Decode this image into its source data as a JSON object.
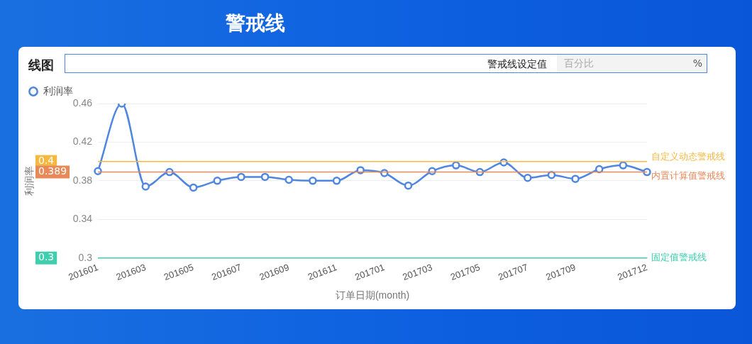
{
  "chart_data": {
    "type": "line",
    "title": "警戒线",
    "subtitle": "线图",
    "xlabel": "订单日期(month)",
    "ylabel": "利润率",
    "categories": [
      "201601",
      null,
      "201603",
      null,
      "201605",
      null,
      "201607",
      null,
      "201609",
      null,
      "201611",
      null,
      "201701",
      null,
      "201703",
      null,
      "201705",
      null,
      "201707",
      null,
      "201709",
      null,
      null,
      "201712"
    ],
    "series": [
      {
        "name": "利润率",
        "color": "#4f86e0",
        "values": [
          0.39,
          0.46,
          0.374,
          0.389,
          0.373,
          0.38,
          0.384,
          0.384,
          0.381,
          0.38,
          0.38,
          0.391,
          0.388,
          0.375,
          0.39,
          0.396,
          0.389,
          0.399,
          0.383,
          0.386,
          0.382,
          0.392,
          0.396,
          0.389
        ]
      }
    ],
    "ylim": [
      0.3,
      0.46
    ],
    "yticks": [
      0.3,
      0.34,
      0.38,
      0.42,
      0.46
    ],
    "grid": "y",
    "legend": "top left",
    "marker": "circle",
    "line_style": "solid",
    "ref_lines": [
      {
        "axis": "y",
        "value": 0.4,
        "label": "自定义动态警戒线",
        "color": "#f5b942"
      },
      {
        "axis": "y",
        "value": 0.389,
        "label": "内置计算值警戒线",
        "color": "#e8895a"
      },
      {
        "axis": "y",
        "value": 0.3,
        "label": "固定值警戒线",
        "color": "#3fcfae"
      }
    ],
    "annotations": [
      "警戒线设定值",
      "百分比",
      "%",
      "0.4",
      "0.389",
      "0.3"
    ]
  }
}
